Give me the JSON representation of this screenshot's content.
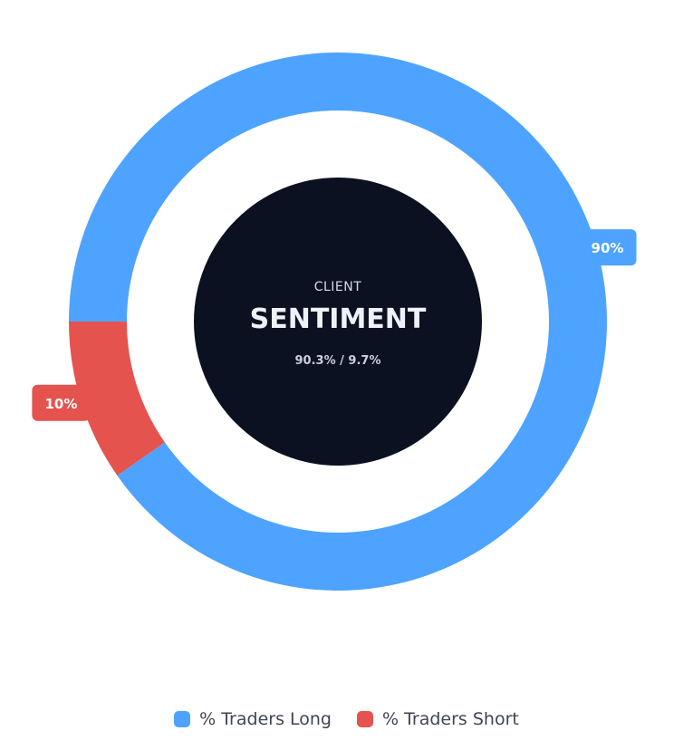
{
  "chart_data": {
    "type": "pie",
    "categories": [
      "% Traders Long",
      "% Traders Short"
    ],
    "values": [
      90.3,
      9.7
    ],
    "slice_labels": [
      "90%",
      "10%"
    ],
    "colors": [
      "#4da3ff",
      "#e5534f"
    ],
    "legend_position": "bottom",
    "center": {
      "small_text": "CLIENT",
      "big_text": "SENTIMENT",
      "ratio_text": "90.3% / 9.7%",
      "fill": "#0b1120"
    }
  }
}
